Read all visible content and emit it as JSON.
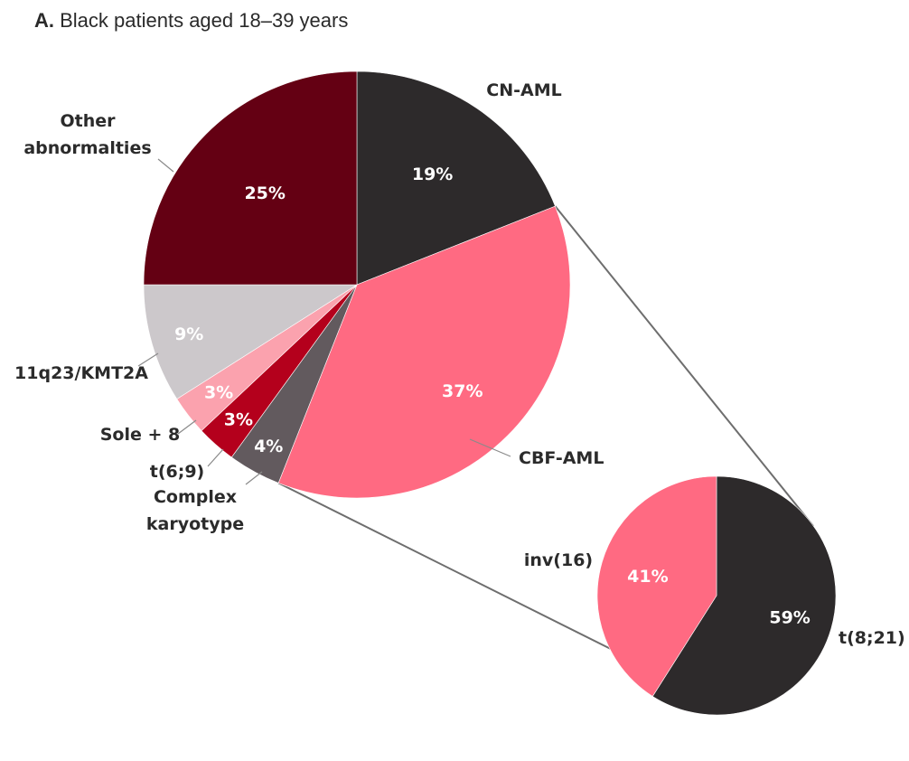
{
  "title": {
    "letter": "A.",
    "text": "Black patients aged 18–39 years"
  },
  "chart_data": [
    {
      "type": "pie",
      "title": "A. Black patients aged 18–39 years",
      "slices": [
        {
          "name": "CN-AML",
          "value": 19,
          "label": "19%",
          "color": "#2d2a2b",
          "name_lines": [
            "CN-AML"
          ]
        },
        {
          "name": "CBF-AML",
          "value": 37,
          "label": "37%",
          "color": "#ff6a82",
          "name_lines": [
            "CBF-AML"
          ]
        },
        {
          "name": "Complex karyotype",
          "value": 4,
          "label": "4%",
          "color": "#625a5e",
          "name_lines": [
            "Complex",
            "karyotype"
          ]
        },
        {
          "name": "t(6;9)",
          "value": 3,
          "label": "3%",
          "color": "#b4001c",
          "name_lines": [
            "t(6;9)"
          ]
        },
        {
          "name": "Sole + 8",
          "value": 3,
          "label": "3%",
          "color": "#fba2ae",
          "name_lines": [
            "Sole + 8"
          ]
        },
        {
          "name": "11q23/KMT2A",
          "value": 9,
          "label": "9%",
          "color": "#ccc8cb",
          "name_lines": [
            "11q23/KMT2A"
          ]
        },
        {
          "name": "Other abnormalties",
          "value": 25,
          "label": "25%",
          "color": "#640013",
          "name_lines": [
            "Other",
            "abnormalties"
          ]
        }
      ]
    },
    {
      "type": "pie",
      "breakdown_of": "CBF-AML",
      "slices": [
        {
          "name": "t(8;21)",
          "value": 59,
          "label": "59%",
          "color": "#2d2a2b",
          "name_lines": [
            "t(8;21)"
          ]
        },
        {
          "name": "inv(16)",
          "value": 41,
          "label": "41%",
          "color": "#ff6a82",
          "name_lines": [
            "inv(16)"
          ]
        }
      ]
    }
  ]
}
